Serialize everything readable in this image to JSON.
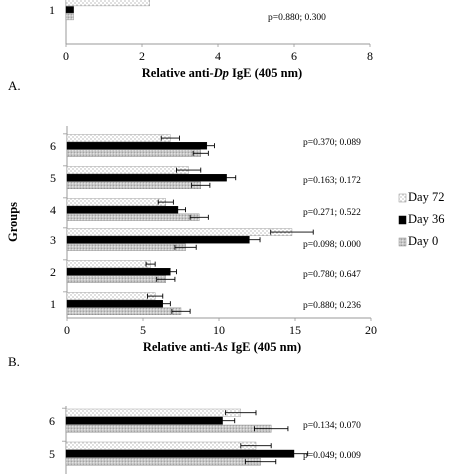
{
  "chart_data": [
    {
      "type": "bar",
      "panel_label": "A.",
      "xlabel_parts": [
        "Relative anti-",
        "Dp",
        " IgE (405 nm)"
      ],
      "xlim": [
        0,
        8
      ],
      "x_ticks": [
        "0",
        "2",
        "4",
        "6",
        "8"
      ],
      "group_labels": [
        "1"
      ],
      "series": [
        {
          "name": "Day 72",
          "values": [
            2.2
          ]
        },
        {
          "name": "Day 36",
          "values": [
            0.2
          ]
        },
        {
          "name": "Day 0",
          "values": [
            0.2
          ]
        }
      ],
      "pvalues": [
        "p=0.880; 0.300"
      ]
    },
    {
      "type": "bar",
      "panel_label": "B.",
      "ylabel": "Groups",
      "xlabel_parts": [
        "Relative anti-",
        "As",
        " IgE (405 nm)"
      ],
      "xlim": [
        0,
        20
      ],
      "x_ticks": [
        "0",
        "5",
        "10",
        "15",
        "20"
      ],
      "group_labels": [
        "1",
        "2",
        "3",
        "4",
        "5",
        "6"
      ],
      "series": [
        {
          "name": "Day 72",
          "values": [
            5.8,
            5.5,
            14.8,
            6.5,
            8.0,
            6.8
          ],
          "errors": [
            0.5,
            0.3,
            1.4,
            0.5,
            0.8,
            0.6
          ]
        },
        {
          "name": "Day 36",
          "values": [
            6.3,
            6.8,
            12.0,
            7.3,
            10.5,
            9.2
          ],
          "errors": [
            0.5,
            0.4,
            0.7,
            0.5,
            0.6,
            0.5
          ]
        },
        {
          "name": "Day 0",
          "values": [
            7.5,
            6.5,
            7.8,
            8.7,
            8.8,
            8.8
          ],
          "errors": [
            0.6,
            0.6,
            0.7,
            0.6,
            0.6,
            0.5
          ]
        }
      ],
      "pvalues": [
        "p=0.880; 0.236",
        "p=0.780; 0.647",
        "p=0.098; 0.000",
        "p=0.271; 0.522",
        "p=0.163; 0.172",
        "p=0.370; 0.089"
      ],
      "legend": [
        "Day 72",
        "Day 36",
        "Day 0"
      ]
    },
    {
      "type": "bar",
      "group_labels": [
        "5",
        "6"
      ],
      "xlim": [
        0,
        20
      ],
      "series": [
        {
          "name": "Day 72",
          "values": [
            12.5,
            11.5
          ],
          "errors": [
            1.0,
            1.0
          ]
        },
        {
          "name": "Day 36",
          "values": [
            15.0,
            10.3
          ],
          "errors": [
            0.9,
            0.8
          ]
        },
        {
          "name": "Day 0",
          "values": [
            12.8,
            13.5
          ],
          "errors": [
            1.0,
            1.1
          ]
        }
      ],
      "pvalues": [
        "p=0.049; 0.009",
        "p=0.134; 0.070"
      ]
    }
  ],
  "colors": {
    "day36": "#000000",
    "axis": "#999999",
    "text": "#111111"
  },
  "icons": {
    "day72": "dot-pattern-swatch",
    "day36": "solid-black-swatch",
    "day0": "stipple-pattern-swatch"
  }
}
